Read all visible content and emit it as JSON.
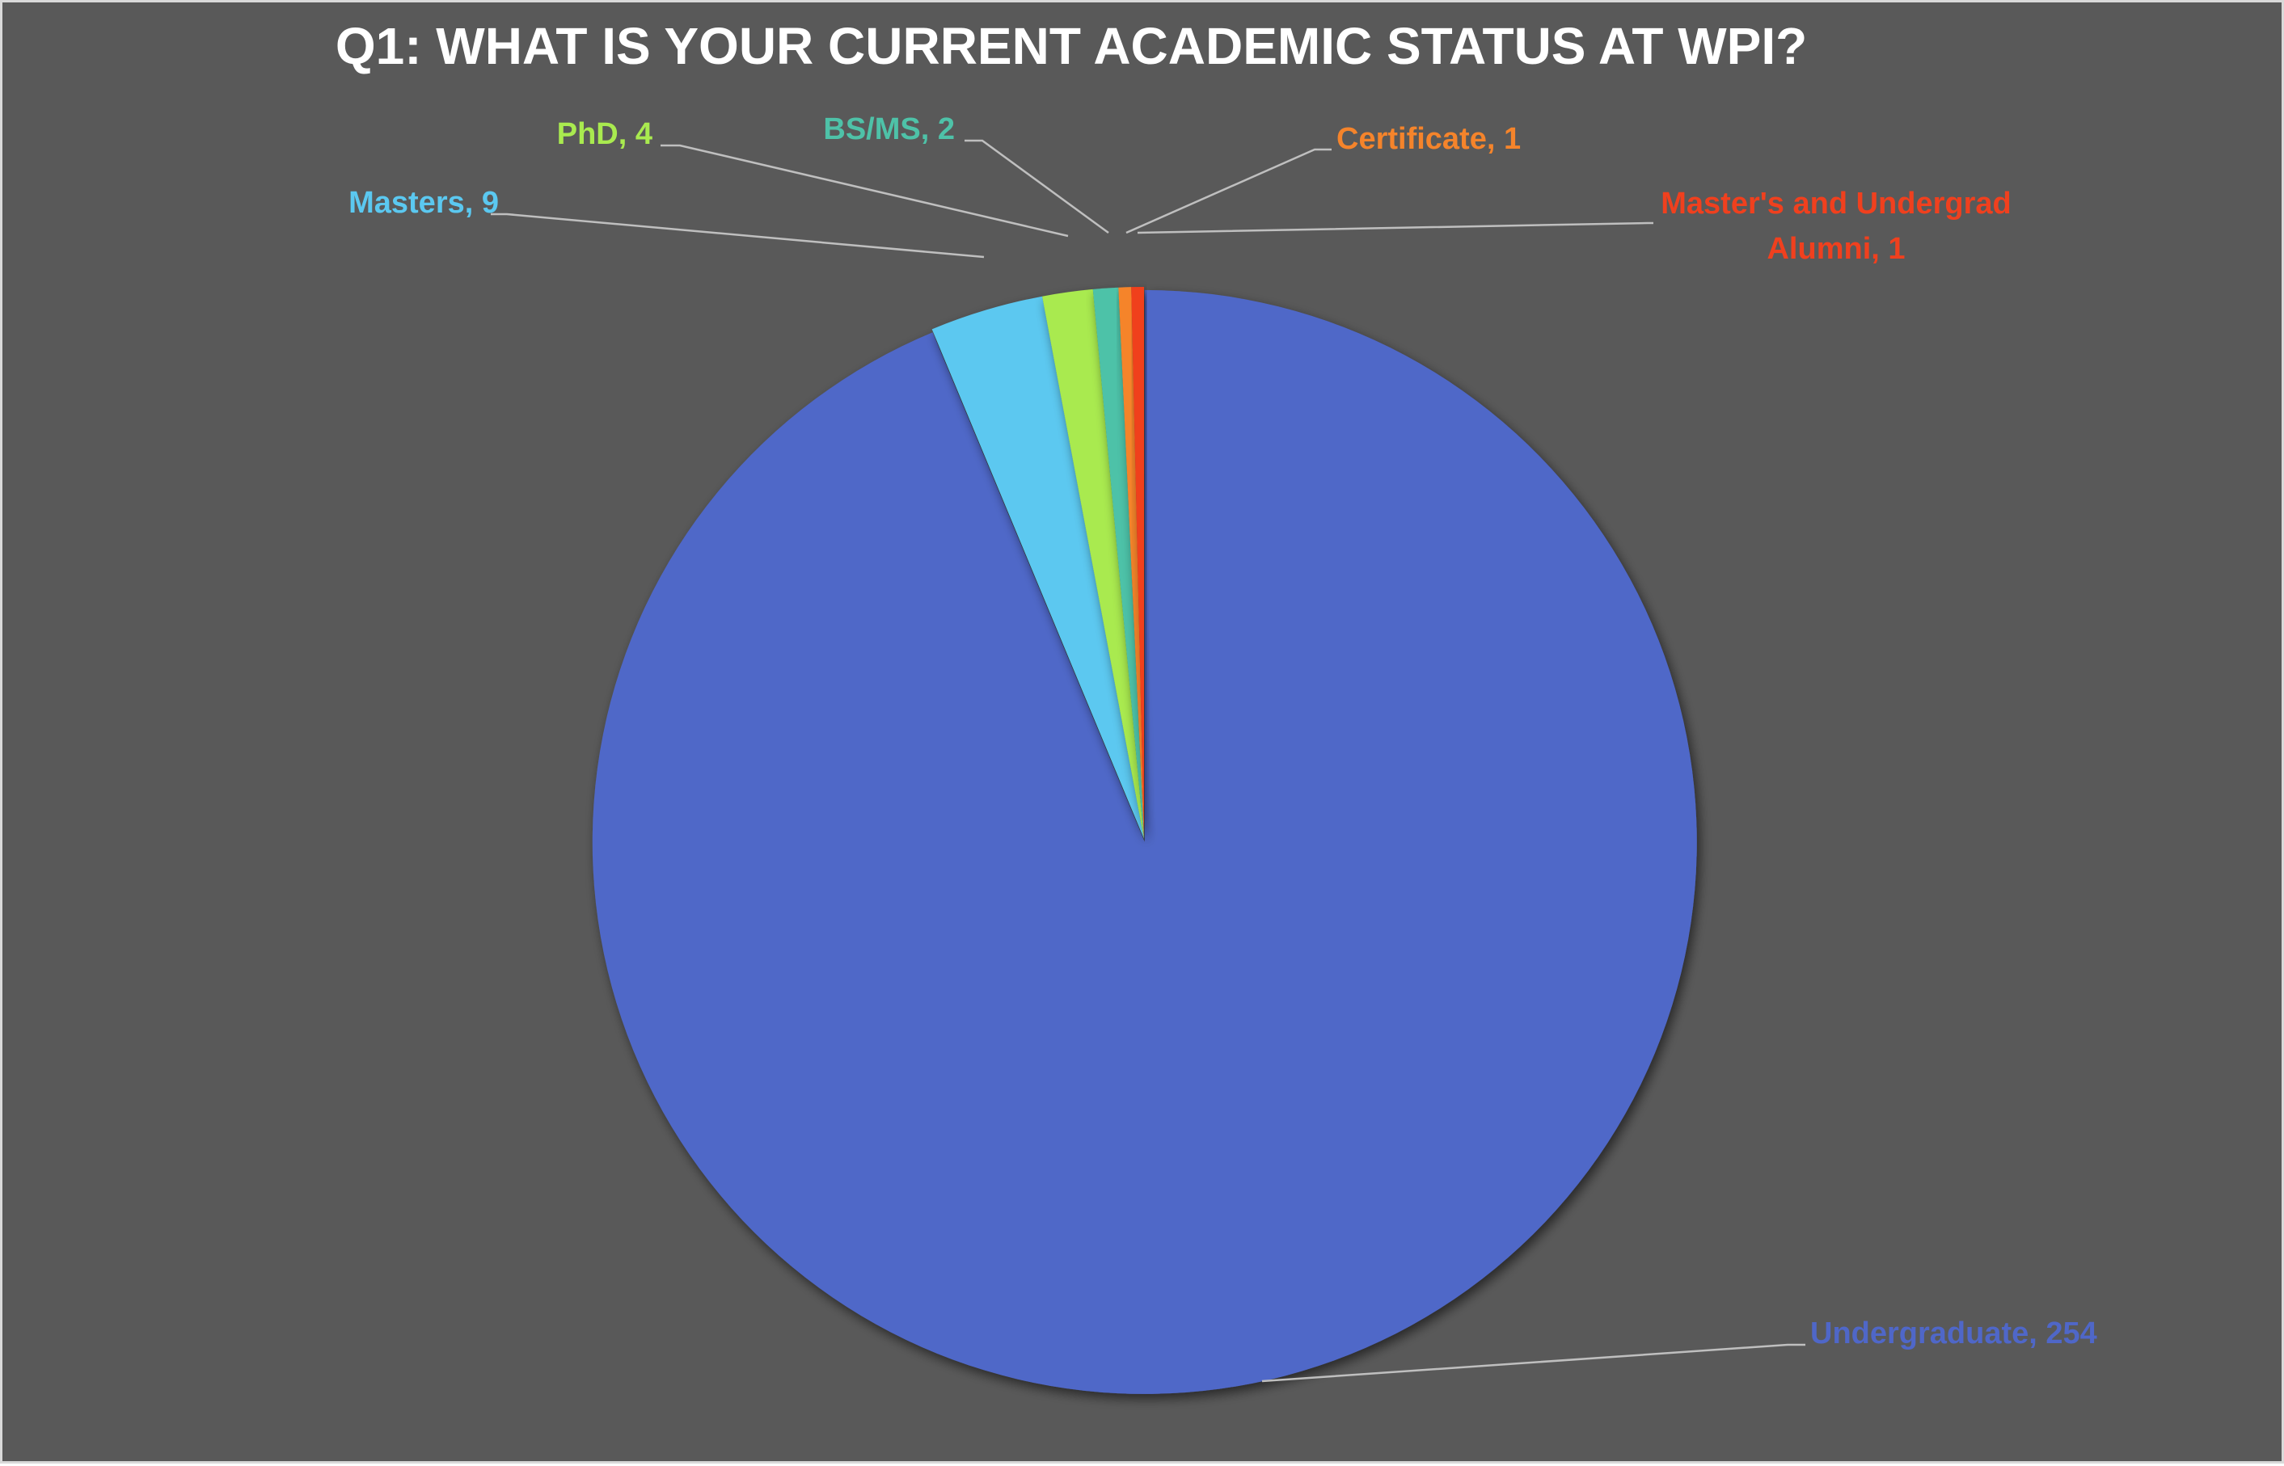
{
  "chart_data": {
    "type": "pie",
    "title": "Q1: WHAT IS YOUR CURRENT ACADEMIC STATUS AT WPI?",
    "slices": [
      {
        "name": "Undergraduate",
        "value": 254,
        "label": "Undergraduate, 254",
        "color": "#4f67c8"
      },
      {
        "name": "Masters",
        "value": 9,
        "label": "Masters, 9",
        "color": "#5bc8f0"
      },
      {
        "name": "PhD",
        "value": 4,
        "label": "PhD, 4",
        "color": "#a9ea4f"
      },
      {
        "name": "BS/MS",
        "value": 2,
        "label": "BS/MS, 2",
        "color": "#4ec2a8"
      },
      {
        "name": "Certificate",
        "value": 1,
        "label": "Certificate, 1",
        "color": "#f5842b"
      },
      {
        "name": "Master's and Undergrad Alumni",
        "value": 1,
        "label_lines": [
          "Master's and Undergrad",
          "Alumni, 1"
        ],
        "color": "#f0401e"
      }
    ],
    "exploded_slice": "Undergraduate",
    "legend": "none",
    "background_color": "#595959"
  }
}
